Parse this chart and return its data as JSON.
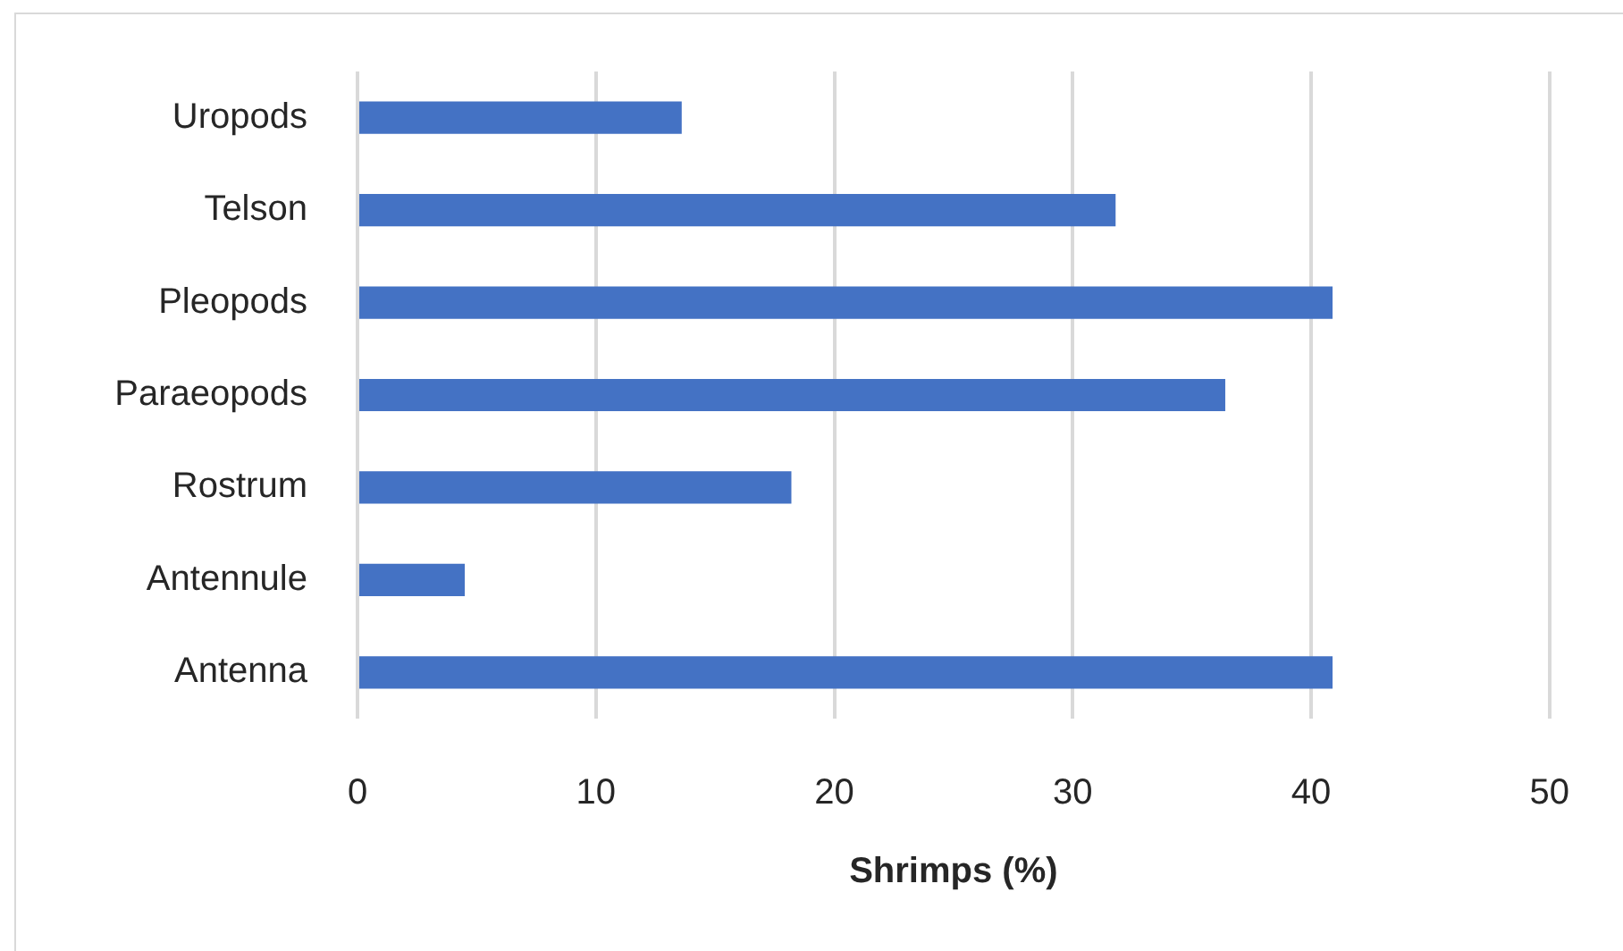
{
  "chart_data": {
    "type": "bar",
    "orientation": "horizontal",
    "categories": [
      "Uropods",
      "Telson",
      "Pleopods",
      "Paraeopods",
      "Rostrum",
      "Antennule",
      "Antenna"
    ],
    "values": [
      13.6,
      31.8,
      40.9,
      36.4,
      18.2,
      4.5,
      40.9
    ],
    "color": "#4472c4",
    "xlabel": "Shrimps (%)",
    "xlim": [
      0,
      50
    ],
    "xticks": [
      0,
      10,
      20,
      30,
      40,
      50
    ],
    "grid": "x"
  }
}
